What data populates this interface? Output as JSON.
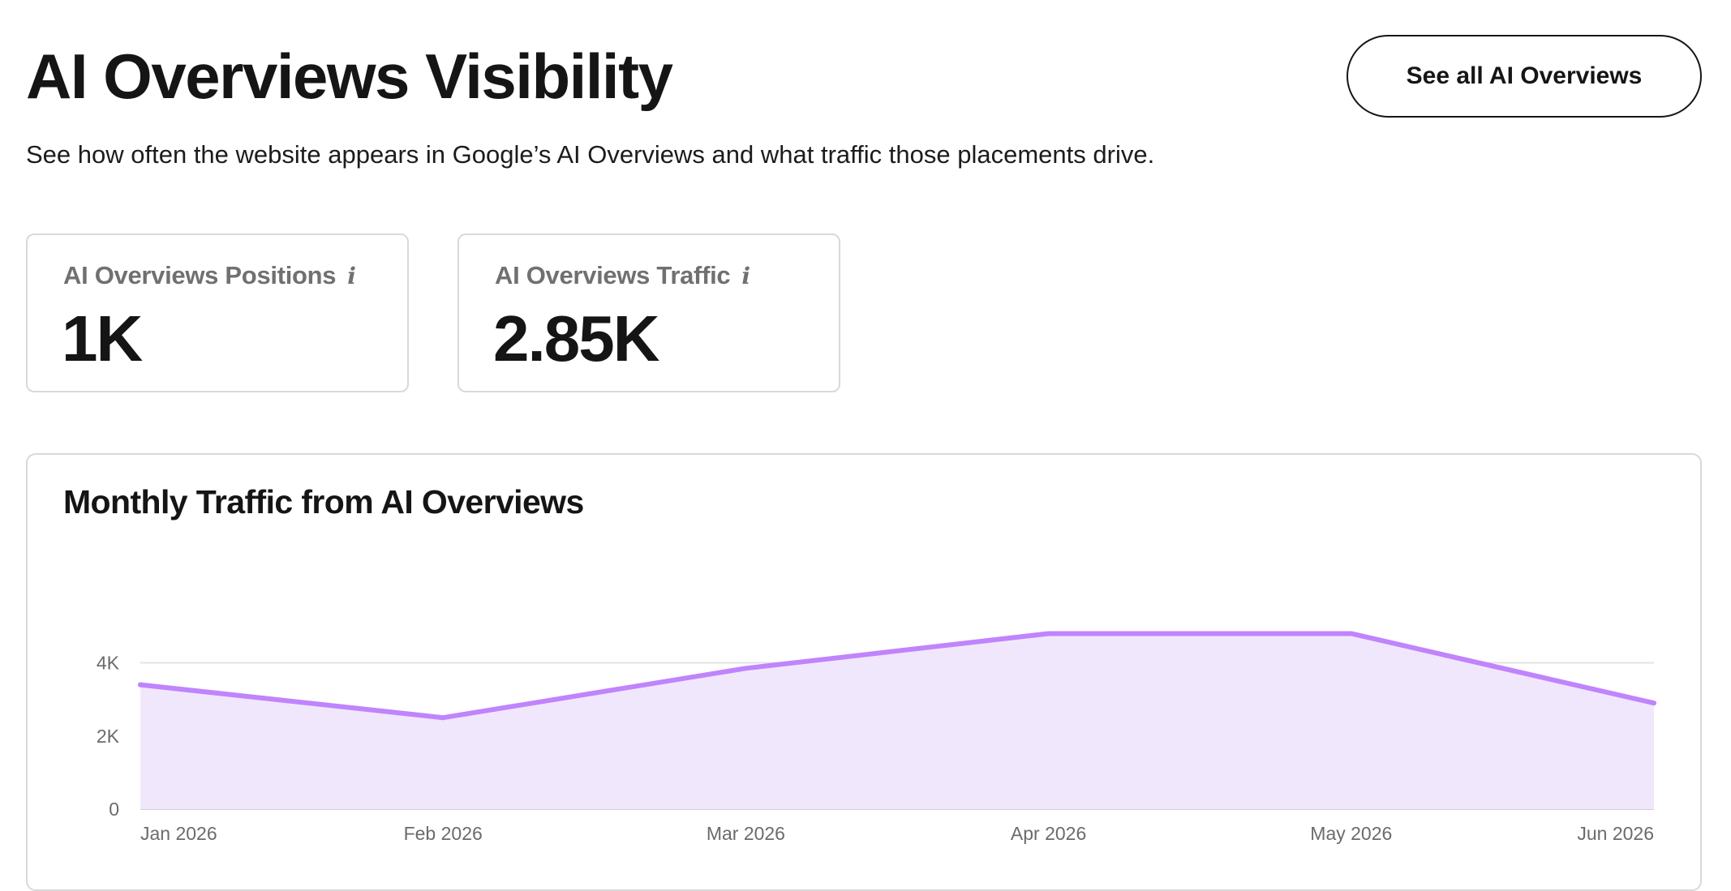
{
  "header": {
    "title": "AI Overviews Visibility",
    "subtitle": "See how often the website appears in Google’s AI Overviews and what traffic those placements drive.",
    "see_all_label": "See all AI Overviews"
  },
  "metrics": [
    {
      "label": "AI Overviews Positions",
      "value": "1K",
      "info_icon": "info-icon"
    },
    {
      "label": "AI Overviews Traffic",
      "value": "2.85K",
      "info_icon": "info-icon"
    }
  ],
  "colors": {
    "line": "#c084fc",
    "fill": "#f1e7fd",
    "grid": "#e3e3e3",
    "axis": "#cfcfd6"
  },
  "chart_data": {
    "type": "area",
    "title": "Monthly Traffic from AI Overviews",
    "xlabel": "",
    "ylabel": "",
    "categories": [
      "Jan 2026",
      "Feb 2026",
      "Mar 2026",
      "Apr 2026",
      "May 2026",
      "Jun 2026"
    ],
    "values": [
      3400,
      2500,
      3850,
      4800,
      4800,
      2900
    ],
    "yticks": [
      {
        "value": 0,
        "label": "0"
      },
      {
        "value": 2000,
        "label": "2K"
      },
      {
        "value": 4000,
        "label": "4K"
      }
    ],
    "ylim": [
      0,
      4800
    ],
    "grid": true,
    "legend": "none"
  }
}
